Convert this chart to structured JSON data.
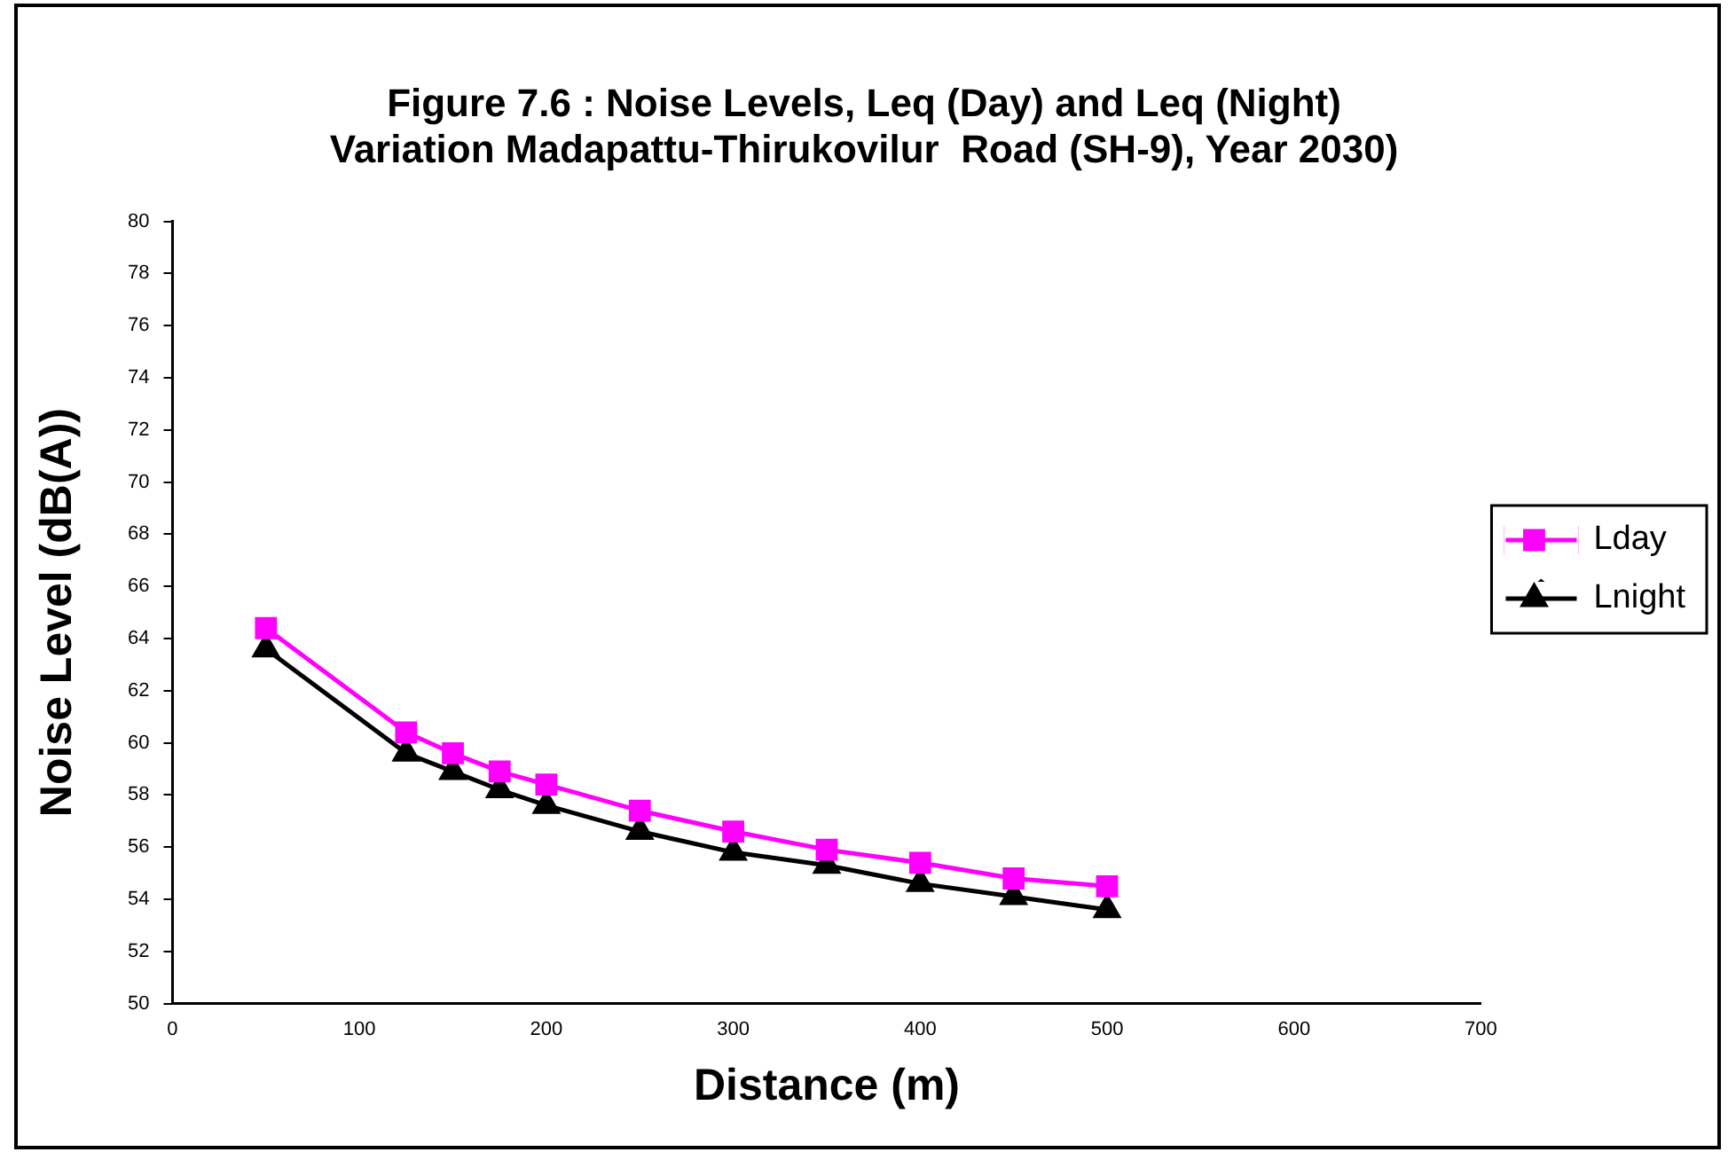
{
  "chart_data": {
    "type": "line",
    "title": "Figure 7.6 : Noise Levels, Leq (Day) and Leq (Night)\nVariation Madapattu-Thirukovilur  Road (SH-9), Year 2030)",
    "xlabel": "Distance (m)",
    "ylabel": "Noise Level (dB(A))",
    "x": [
      50,
      125,
      150,
      175,
      200,
      250,
      300,
      350,
      400,
      450,
      500
    ],
    "series": [
      {
        "name": "Lday",
        "color": "#ff00ff",
        "marker": "square",
        "values": [
          64.4,
          60.4,
          59.6,
          58.9,
          58.4,
          57.4,
          56.6,
          55.9,
          55.4,
          54.8,
          54.5
        ]
      },
      {
        "name": "Lnight",
        "color": "#000000",
        "marker": "triangle",
        "values": [
          63.6,
          59.6,
          58.9,
          58.2,
          57.6,
          56.6,
          55.8,
          55.3,
          54.6,
          54.1,
          53.6
        ]
      }
    ],
    "xlim": [
      0,
      700
    ],
    "xticks": [
      0,
      100,
      200,
      300,
      400,
      500,
      600,
      700
    ],
    "ylim": [
      50,
      80
    ],
    "yticks": [
      50,
      52,
      54,
      56,
      58,
      60,
      62,
      64,
      66,
      68,
      70,
      72,
      74,
      76,
      78,
      80
    ],
    "grid": false,
    "legend": "right",
    "line_style": "solid"
  }
}
